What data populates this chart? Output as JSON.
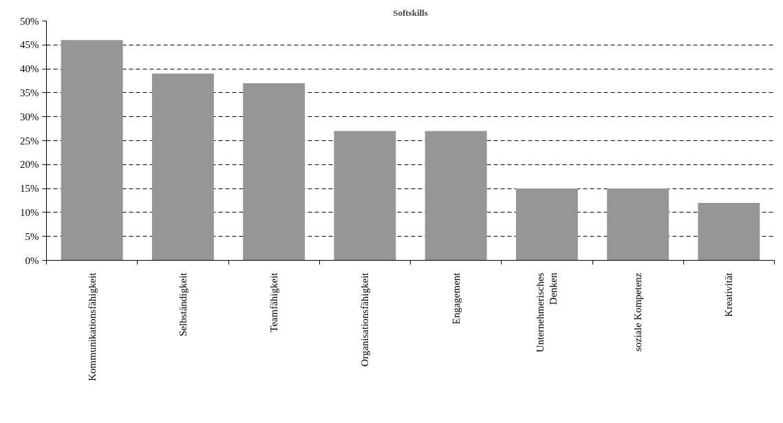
{
  "chart_data": {
    "type": "bar",
    "title": "Softskills",
    "categories": [
      "Kommunikationsfähigkeit",
      "Selbständigkeit",
      "Teamfähigkeit",
      "Organisationsfähigkeit",
      "Engagement",
      "Unternehmerisches\nDenken",
      "soziale Kompetenz",
      "Kreativität"
    ],
    "values": [
      46,
      39,
      37,
      27,
      27,
      15,
      15,
      12
    ],
    "color": "#969696",
    "ylim": [
      0,
      50
    ],
    "yticks": [
      {
        "value": 0,
        "label": "0%"
      },
      {
        "value": 5,
        "label": "5%"
      },
      {
        "value": 10,
        "label": "10%"
      },
      {
        "value": 15,
        "label": "15%"
      },
      {
        "value": 20,
        "label": "20%"
      },
      {
        "value": 25,
        "label": "25%"
      },
      {
        "value": 30,
        "label": "30%"
      },
      {
        "value": 35,
        "label": "35%"
      },
      {
        "value": 40,
        "label": "40%"
      },
      {
        "value": 45,
        "label": "45%"
      },
      {
        "value": 50,
        "label": "50%"
      }
    ],
    "grid": "y"
  }
}
